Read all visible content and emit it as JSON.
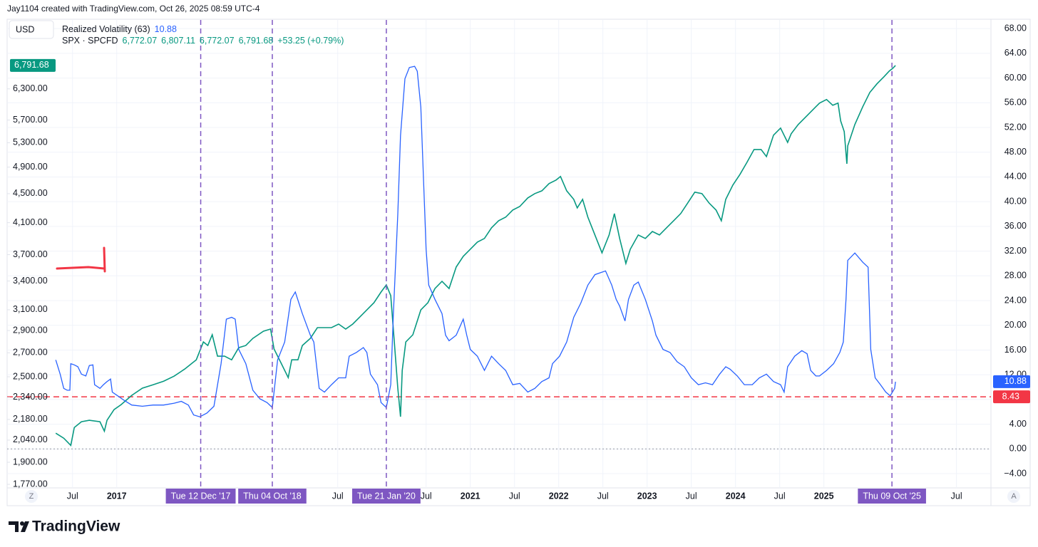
{
  "header": "Jay1104 created with TradingView.com, Oct 26, 2025 08:59 UTC-4",
  "currency": "USD",
  "scale_buttons": [
    "Z",
    "A"
  ],
  "brand": "TradingView",
  "legend": {
    "ohlc": [
      "6,772.07",
      "6,807.11",
      "6,772.07"
    ],
    "change": "+53.25 (+0.79%)"
  },
  "chart_data": {
    "type": "line",
    "xlim": [
      2015.76,
      2026.89
    ],
    "xticks": [
      {
        "value": 2016.5,
        "label": "Jul"
      },
      2017,
      {
        "value": 2019.5,
        "label": "Jul"
      },
      {
        "value": 2020.5,
        "label": "Jul"
      },
      2021,
      {
        "value": 2021.5,
        "label": "Jul"
      },
      2022,
      {
        "value": 2022.5,
        "label": "Jul"
      },
      2023,
      {
        "value": 2023.5,
        "label": "Jul"
      },
      2024,
      {
        "value": 2024.5,
        "label": "Jul"
      },
      2025,
      {
        "value": 2026.5,
        "label": "Jul"
      }
    ],
    "ylim": [
      1750,
      7860
    ],
    "ylog": true,
    "yticks": [
      {
        "value": 1770,
        "label": "1,770.00"
      },
      {
        "value": 1900,
        "label": "1,900.00"
      },
      {
        "value": 2040,
        "label": "2,040.00"
      },
      {
        "value": 2180,
        "label": "2,180.00"
      },
      {
        "value": 2340,
        "label": "2,340.00"
      },
      {
        "value": 2500,
        "label": "2,500.00"
      },
      {
        "value": 2700,
        "label": "2,700.00"
      },
      {
        "value": 2900,
        "label": "2,900.00"
      },
      {
        "value": 3100,
        "label": "3,100.00"
      },
      {
        "value": 3400,
        "label": "3,400.00"
      },
      {
        "value": 3700,
        "label": "3,700.00"
      },
      {
        "value": 4100,
        "label": "4,100.00"
      },
      {
        "value": 4500,
        "label": "4,500.00"
      },
      {
        "value": 4900,
        "label": "4,900.00"
      },
      {
        "value": 5300,
        "label": "5,300.00"
      },
      {
        "value": 5700,
        "label": "5,700.00"
      },
      {
        "value": 6300,
        "label": "6,300.00"
      }
    ],
    "y2lim": [
      -6.3,
      69.4
    ],
    "y2ticks": [
      {
        "value": -4,
        "label": "−4.00"
      },
      {
        "value": 0,
        "label": "0.00"
      },
      {
        "value": 4,
        "label": "4.00"
      },
      {
        "value": 8,
        "label": "8.00"
      },
      {
        "value": 12,
        "label": "12.00"
      },
      {
        "value": 16,
        "label": "16.00"
      },
      {
        "value": 20,
        "label": "20.00"
      },
      {
        "value": 24,
        "label": "24.00"
      },
      {
        "value": 28,
        "label": "28.00"
      },
      {
        "value": 32,
        "label": "32.00"
      },
      {
        "value": 36,
        "label": "36.00"
      },
      {
        "value": 40,
        "label": "40.00"
      },
      {
        "value": 44,
        "label": "44.00"
      },
      {
        "value": 48,
        "label": "48.00"
      },
      {
        "value": 52,
        "label": "52.00"
      },
      {
        "value": 56,
        "label": "56.00"
      },
      {
        "value": 60,
        "label": "60.00"
      },
      {
        "value": 64,
        "label": "64.00"
      },
      {
        "value": 68,
        "label": "68.00"
      }
    ],
    "grid": true,
    "series": [
      {
        "name": "SPX · SPCFD",
        "color": "#089981",
        "last_label": "6,791.68",
        "x": [
          2016.31,
          2016.4,
          2016.48,
          2016.52,
          2016.6,
          2016.69,
          2016.81,
          2016.86,
          2016.89,
          2016.97,
          2017.05,
          2017.17,
          2017.29,
          2017.41,
          2017.53,
          2017.65,
          2017.77,
          2017.9,
          2017.98,
          2018.03,
          2018.08,
          2018.14,
          2018.22,
          2018.3,
          2018.38,
          2018.46,
          2018.54,
          2018.66,
          2018.74,
          2018.78,
          2018.86,
          2018.94,
          2018.98,
          2019.05,
          2019.1,
          2019.19,
          2019.27,
          2019.35,
          2019.43,
          2019.51,
          2019.59,
          2019.67,
          2019.75,
          2019.83,
          2019.91,
          2019.99,
          2020.05,
          2020.1,
          2020.14,
          2020.18,
          2020.21,
          2020.23,
          2020.27,
          2020.35,
          2020.44,
          2020.52,
          2020.6,
          2020.68,
          2020.76,
          2020.84,
          2020.92,
          2021.0,
          2021.08,
          2021.16,
          2021.24,
          2021.32,
          2021.4,
          2021.48,
          2021.56,
          2021.65,
          2021.73,
          2021.81,
          2021.89,
          2021.97,
          2022.02,
          2022.09,
          2022.17,
          2022.21,
          2022.27,
          2022.33,
          2022.41,
          2022.49,
          2022.57,
          2022.63,
          2022.69,
          2022.76,
          2022.81,
          2022.9,
          2022.98,
          2023.06,
          2023.14,
          2023.22,
          2023.3,
          2023.38,
          2023.46,
          2023.54,
          2023.62,
          2023.7,
          2023.78,
          2023.84,
          2023.89,
          2023.97,
          2024.05,
          2024.13,
          2024.21,
          2024.29,
          2024.35,
          2024.43,
          2024.51,
          2024.59,
          2024.63,
          2024.71,
          2024.79,
          2024.87,
          2024.95,
          2025.03,
          2025.1,
          2025.16,
          2025.19,
          2025.23,
          2025.26,
          2025.27,
          2025.31,
          2025.35,
          2025.44,
          2025.52,
          2025.6,
          2025.68,
          2025.74,
          2025.78,
          2025.81
        ],
        "values": [
          2086,
          2053,
          2006,
          2124,
          2164,
          2174,
          2164,
          2100,
          2174,
          2250,
          2286,
          2355,
          2410,
          2437,
          2465,
          2505,
          2563,
          2640,
          2796,
          2764,
          2861,
          2671,
          2671,
          2640,
          2745,
          2764,
          2828,
          2894,
          2914,
          2733,
          2611,
          2493,
          2640,
          2640,
          2764,
          2828,
          2927,
          2927,
          2927,
          2961,
          2914,
          2961,
          3029,
          3099,
          3171,
          3282,
          3358,
          3244,
          2796,
          2410,
          2199,
          2551,
          2796,
          2861,
          3099,
          3171,
          3319,
          3396,
          3319,
          3556,
          3680,
          3765,
          3852,
          3897,
          4033,
          4126,
          4173,
          4270,
          4319,
          4439,
          4501,
          4542,
          4648,
          4701,
          4755,
          4542,
          4419,
          4299,
          4419,
          4173,
          3941,
          3722,
          3941,
          4221,
          3897,
          3597,
          3765,
          3941,
          3897,
          3986,
          3941,
          4033,
          4126,
          4221,
          4368,
          4522,
          4501,
          4368,
          4270,
          4126,
          4419,
          4626,
          4787,
          4977,
          5186,
          5186,
          5069,
          5429,
          5555,
          5306,
          5454,
          5619,
          5749,
          5882,
          6018,
          6088,
          5977,
          6018,
          5683,
          5492,
          4954,
          5246,
          5429,
          5619,
          5950,
          6228,
          6402,
          6550,
          6671,
          6732,
          6791.68
        ]
      },
      {
        "name": "Realized Volatility (63)",
        "color": "#2962ff",
        "axis": "y2",
        "x": [
          2016.31,
          2016.36,
          2016.4,
          2016.44,
          2016.47,
          2016.48,
          2016.52,
          2016.56,
          2016.6,
          2016.65,
          2016.69,
          2016.73,
          2016.75,
          2016.81,
          2016.85,
          2016.89,
          2016.93,
          2016.95,
          2017.01,
          2017.09,
          2017.17,
          2017.29,
          2017.41,
          2017.53,
          2017.65,
          2017.73,
          2017.81,
          2017.87,
          2017.94,
          2018.02,
          2018.1,
          2018.18,
          2018.24,
          2018.3,
          2018.34,
          2018.38,
          2018.46,
          2018.54,
          2018.62,
          2018.7,
          2018.76,
          2018.82,
          2018.9,
          2018.97,
          2019.02,
          2019.1,
          2019.19,
          2019.23,
          2019.29,
          2019.35,
          2019.43,
          2019.51,
          2019.59,
          2019.63,
          2019.71,
          2019.79,
          2019.83,
          2019.87,
          2019.95,
          2019.99,
          2020.05,
          2020.1,
          2020.13,
          2020.18,
          2020.21,
          2020.26,
          2020.31,
          2020.37,
          2020.4,
          2020.44,
          2020.47,
          2020.5,
          2020.53,
          2020.6,
          2020.68,
          2020.72,
          2020.76,
          2020.84,
          2020.92,
          2020.96,
          2021.0,
          2021.08,
          2021.16,
          2021.24,
          2021.32,
          2021.4,
          2021.48,
          2021.56,
          2021.65,
          2021.73,
          2021.81,
          2021.89,
          2021.93,
          2022.01,
          2022.09,
          2022.17,
          2022.25,
          2022.33,
          2022.41,
          2022.49,
          2022.53,
          2022.6,
          2022.65,
          2022.69,
          2022.75,
          2022.79,
          2022.85,
          2022.9,
          2022.98,
          2023.06,
          2023.1,
          2023.18,
          2023.26,
          2023.34,
          2023.42,
          2023.5,
          2023.58,
          2023.66,
          2023.74,
          2023.82,
          2023.89,
          2023.94,
          2024.02,
          2024.1,
          2024.19,
          2024.27,
          2024.35,
          2024.43,
          2024.51,
          2024.55,
          2024.59,
          2024.67,
          2024.75,
          2024.81,
          2024.85,
          2024.91,
          2024.95,
          2025.03,
          2025.11,
          2025.18,
          2025.22,
          2025.25,
          2025.27,
          2025.35,
          2025.44,
          2025.5,
          2025.53,
          2025.58,
          2025.64,
          2025.7,
          2025.75,
          2025.8,
          2025.81
        ],
        "values": [
          14.4,
          12.1,
          9.8,
          9.5,
          9.5,
          13.8,
          13.6,
          13.3,
          12.1,
          11.8,
          13.5,
          13.6,
          10.4,
          9.8,
          10.4,
          10.9,
          11.3,
          9.2,
          8.6,
          7.8,
          7.1,
          6.9,
          7.1,
          7.1,
          7.4,
          7.7,
          7.1,
          5.5,
          5.2,
          5.8,
          6.9,
          13.8,
          21.0,
          21.3,
          21.0,
          16.1,
          13.8,
          9.5,
          8.1,
          7.5,
          6.7,
          14.4,
          17.3,
          24.2,
          25.4,
          21.9,
          18.4,
          17.3,
          9.8,
          9.2,
          10.4,
          11.5,
          11.5,
          15.0,
          15.6,
          16.4,
          15.6,
          12.1,
          10.4,
          7.5,
          6.7,
          10.4,
          21.9,
          38.0,
          50.7,
          59.9,
          61.7,
          61.9,
          61.1,
          55.3,
          43.8,
          32.3,
          26.5,
          24.2,
          21.9,
          18.4,
          17.5,
          18.4,
          21.0,
          18.4,
          16.1,
          15.0,
          12.7,
          15.0,
          13.8,
          12.7,
          10.4,
          10.6,
          9.2,
          9.8,
          10.9,
          11.5,
          13.8,
          15.0,
          17.3,
          21.3,
          23.6,
          26.5,
          28.2,
          28.6,
          28.8,
          26.5,
          24.2,
          23.1,
          20.7,
          24.2,
          26.5,
          27.0,
          24.2,
          20.7,
          18.4,
          16.1,
          15.6,
          14.1,
          13.3,
          11.5,
          10.4,
          10.7,
          10.4,
          12.1,
          13.3,
          12.9,
          11.8,
          10.4,
          10.4,
          11.5,
          12.1,
          10.9,
          10.4,
          9.2,
          13.3,
          15.0,
          15.9,
          15.4,
          12.7,
          11.8,
          11.8,
          12.7,
          13.8,
          15.6,
          17.3,
          24.2,
          30.5,
          31.7,
          30.2,
          29.4,
          16.1,
          11.5,
          10.4,
          9.2,
          8.6,
          9.8,
          10.88
        ]
      }
    ],
    "hlines": [
      {
        "value": 8.43,
        "axis": "y2",
        "color": "#f23645"
      },
      {
        "value": 0,
        "axis": "y2",
        "color": "#b2b5be"
      }
    ],
    "vlines": [
      {
        "x": 2017.95,
        "label": "Tue 12 Dec '17"
      },
      {
        "x": 2018.76,
        "label": "Thu 04 Oct '18"
      },
      {
        "x": 2020.05,
        "label": "Tue 21 Jan '20"
      },
      {
        "x": 2025.77,
        "label": "Thu 09 Oct '25"
      }
    ],
    "vline_color": "#7e57c2"
  }
}
